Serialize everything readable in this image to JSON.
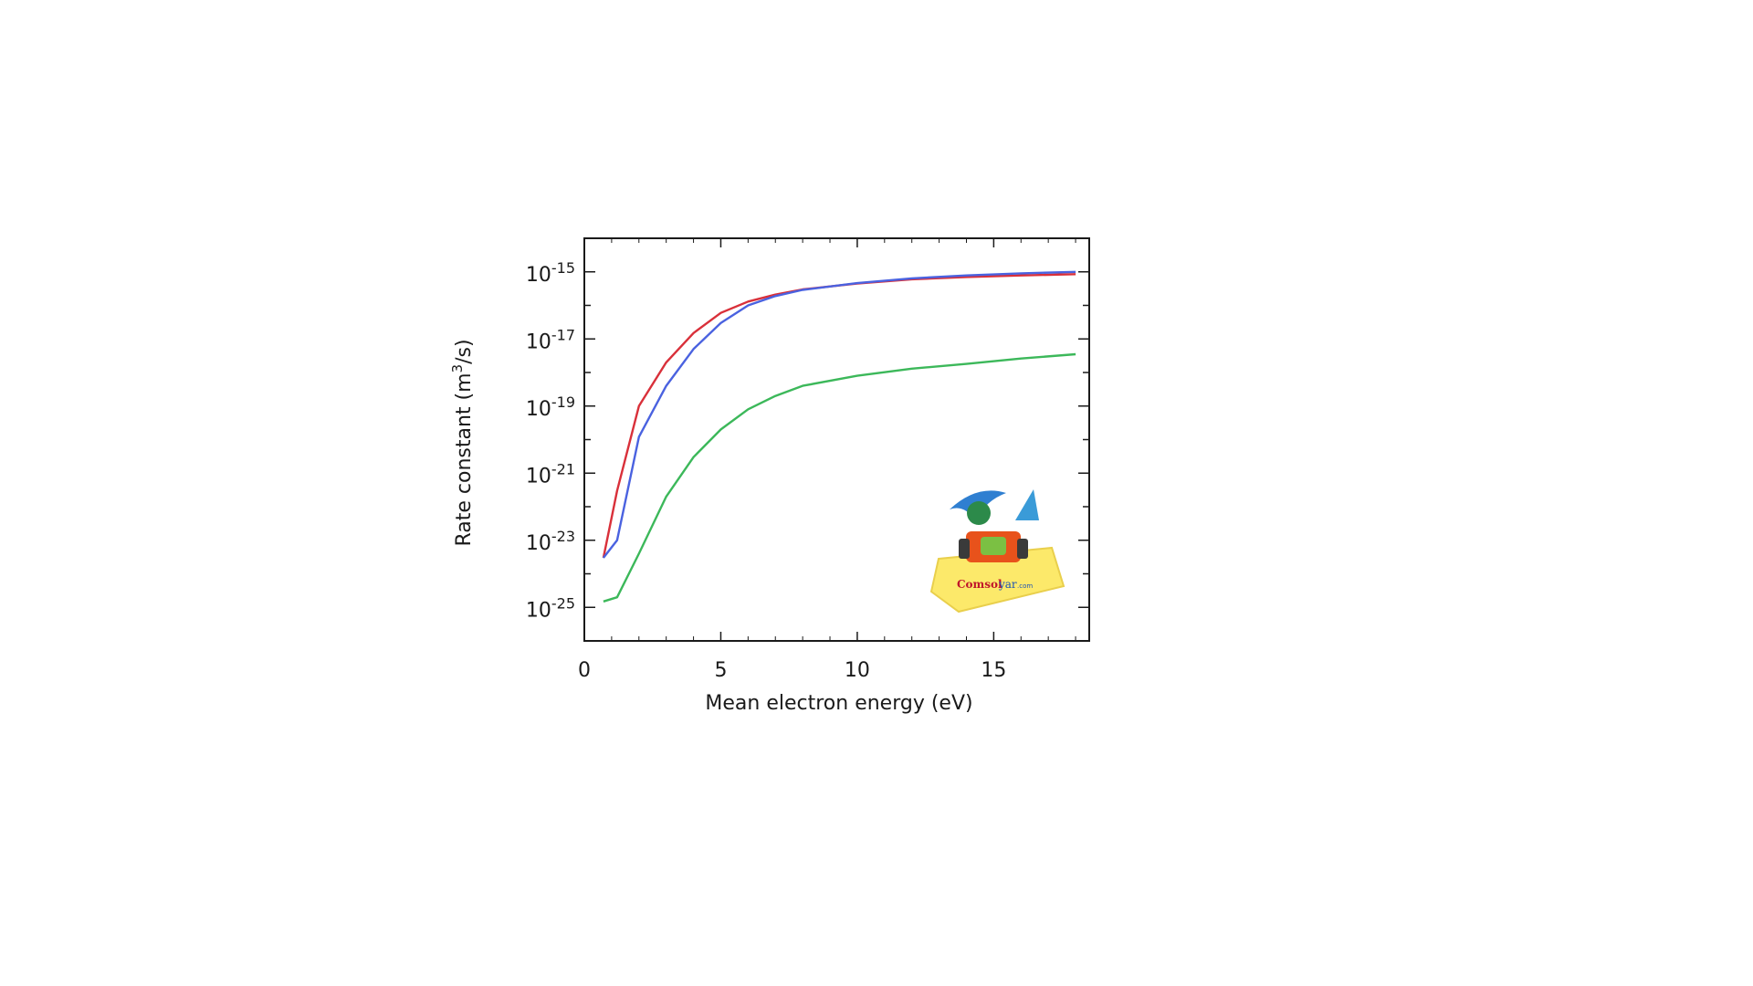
{
  "chart_data": {
    "type": "line",
    "title": "",
    "xlabel": "Mean electron energy (eV)",
    "ylabel_main": "Rate constant (m",
    "ylabel_sup": "3",
    "ylabel_tail": "/s)",
    "xlim": [
      0,
      18.5
    ],
    "ylim": [
      1e-26,
      1e-14
    ],
    "yscale": "log",
    "x_ticks": [
      0,
      5,
      10,
      15
    ],
    "y_ticks": [
      {
        "base": "10",
        "exp": "-15",
        "value": -15
      },
      {
        "base": "10",
        "exp": "-17",
        "value": -17
      },
      {
        "base": "10",
        "exp": "-19",
        "value": -19
      },
      {
        "base": "10",
        "exp": "-21",
        "value": -21
      },
      {
        "base": "10",
        "exp": "-23",
        "value": -23
      },
      {
        "base": "10",
        "exp": "-25",
        "value": -25
      }
    ],
    "grid": false,
    "legend": "none",
    "series": [
      {
        "color": "#d9303a",
        "x": [
          0.7,
          1.2,
          2,
          3,
          4,
          5,
          6,
          7,
          8,
          10,
          12,
          14,
          16,
          18
        ],
        "y": [
          3e-24,
          3e-22,
          1e-19,
          2e-18,
          1.5e-17,
          6e-17,
          1.3e-16,
          2.1e-16,
          3e-16,
          4.5e-16,
          6e-16,
          7e-16,
          7.8e-16,
          8.5e-16
        ]
      },
      {
        "color": "#4a62e0",
        "x": [
          0.7,
          1.2,
          2,
          3,
          4,
          5,
          6,
          7,
          8,
          10,
          12,
          14,
          16,
          18
        ],
        "y": [
          3e-24,
          1e-23,
          1.2e-20,
          4e-19,
          5e-18,
          3e-17,
          1e-16,
          1.9e-16,
          2.9e-16,
          4.6e-16,
          6.4e-16,
          7.8e-16,
          9e-16,
          1e-15
        ]
      },
      {
        "color": "#3cb85a",
        "x": [
          0.7,
          1.2,
          2,
          3,
          4,
          5,
          6,
          7,
          8,
          10,
          12,
          14,
          16,
          18
        ],
        "y": [
          1.5e-25,
          2e-25,
          4e-24,
          2e-22,
          3e-21,
          2e-20,
          8e-20,
          2e-19,
          4e-19,
          8e-19,
          1.3e-18,
          1.8e-18,
          2.6e-18,
          3.5e-18
        ]
      }
    ]
  },
  "watermark": {
    "brand": "Comsol",
    "brand2": "yar",
    "domain": ".com",
    "colors": {
      "pad": "#fce96a",
      "brand": "#c0142a",
      "brand2": "#1b52b5",
      "car": "#e8521b",
      "wing": "#2f7fd1"
    }
  }
}
